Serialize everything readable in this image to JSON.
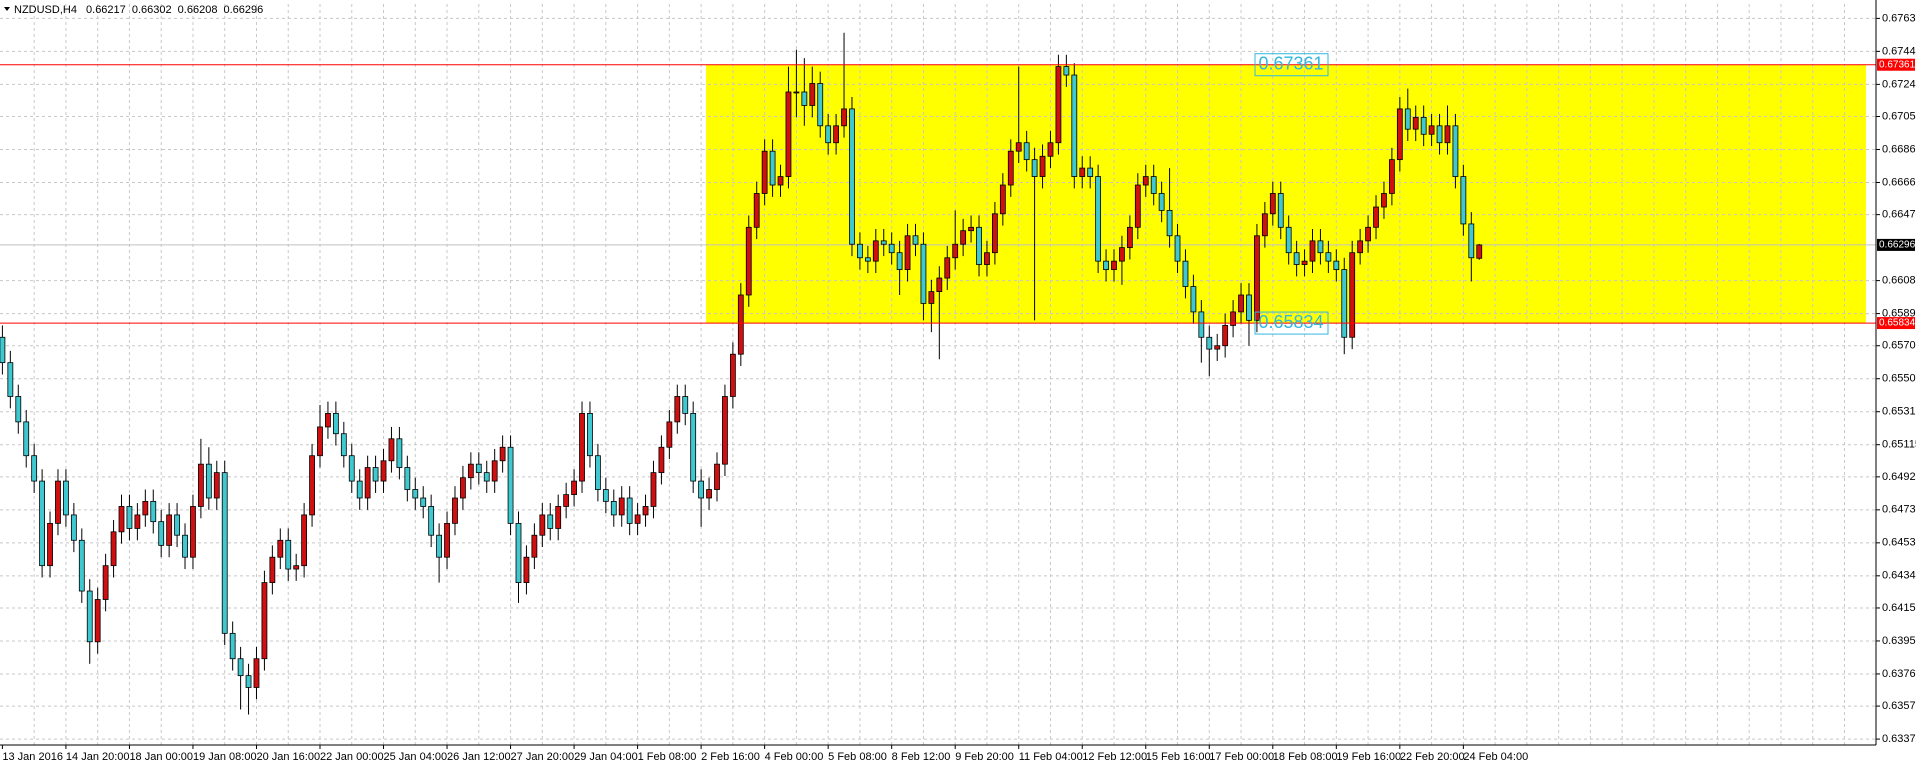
{
  "chart_data": {
    "type": "candlestick",
    "symbol": "NZDUSD,H4",
    "categories": [
      "13 Jan 2016",
      null,
      null,
      null,
      null,
      null,
      null,
      null,
      "14 Jan 20:00",
      null,
      null,
      null,
      null,
      null,
      null,
      null,
      "18 Jan 00:00",
      null,
      null,
      null,
      null,
      null,
      null,
      null,
      "19 Jan 08:00",
      null,
      null,
      null,
      null,
      null,
      null,
      null,
      "20 Jan 16:00",
      null,
      null,
      null,
      null,
      null,
      null,
      null,
      "22 Jan 00:00",
      null,
      null,
      null,
      null,
      null,
      null,
      null,
      "25 Jan 04:00",
      null,
      null,
      null,
      null,
      null,
      null,
      null,
      "26 Jan 12:00",
      null,
      null,
      null,
      null,
      null,
      null,
      null,
      "27 Jan 20:00",
      null,
      null,
      null,
      null,
      null,
      null,
      null,
      "29 Jan 04:00",
      null,
      null,
      null,
      null,
      null,
      null,
      null,
      "1 Feb 08:00",
      null,
      null,
      null,
      null,
      null,
      null,
      null,
      "2 Feb 16:00",
      null,
      null,
      null,
      null,
      null,
      null,
      null,
      "4 Feb 00:00",
      null,
      null,
      null,
      null,
      null,
      null,
      null,
      "5 Feb 08:00",
      null,
      null,
      null,
      null,
      null,
      null,
      null,
      "8 Feb 12:00",
      null,
      null,
      null,
      null,
      null,
      null,
      null,
      "9 Feb 20:00",
      null,
      null,
      null,
      null,
      null,
      null,
      null,
      "11 Feb 04:00",
      null,
      null,
      null,
      null,
      null,
      null,
      null,
      "12 Feb 12:00",
      null,
      null,
      null,
      null,
      null,
      null,
      null,
      "15 Feb 16:00",
      null,
      null,
      null,
      null,
      null,
      null,
      null,
      "17 Feb 00:00",
      null,
      null,
      null,
      null,
      null,
      null,
      null,
      "18 Feb 08:00",
      null,
      null,
      null,
      null,
      null,
      null,
      null,
      "19 Feb 16:00",
      null,
      null,
      null,
      null,
      null,
      null,
      null,
      "22 Feb 20:00",
      null,
      null,
      null,
      null,
      null,
      null,
      null,
      "24 Feb 04:00",
      null,
      null
    ],
    "open": [
      0.6575,
      0.656,
      0.654,
      0.6525,
      0.6505,
      0.649,
      0.644,
      0.6465,
      0.649,
      0.647,
      0.6455,
      0.6425,
      0.6395,
      0.642,
      0.644,
      0.646,
      0.6475,
      0.6462,
      0.647,
      0.6478,
      0.6466,
      0.6452,
      0.647,
      0.6458,
      0.6445,
      0.6475,
      0.65,
      0.648,
      0.6495,
      0.64,
      0.6385,
      0.6375,
      0.6368,
      0.6385,
      0.643,
      0.6445,
      0.6455,
      0.6438,
      0.644,
      0.647,
      0.6505,
      0.6522,
      0.653,
      0.6518,
      0.6505,
      0.649,
      0.648,
      0.6498,
      0.649,
      0.6502,
      0.6515,
      0.6498,
      0.6485,
      0.648,
      0.6475,
      0.6458,
      0.6445,
      0.6465,
      0.648,
      0.6492,
      0.65,
      0.6495,
      0.649,
      0.6502,
      0.651,
      0.6465,
      0.643,
      0.6445,
      0.6458,
      0.647,
      0.6462,
      0.6475,
      0.6482,
      0.649,
      0.653,
      0.6505,
      0.6485,
      0.6478,
      0.647,
      0.648,
      0.6465,
      0.647,
      0.6475,
      0.6495,
      0.651,
      0.6525,
      0.654,
      0.653,
      0.649,
      0.648,
      0.6485,
      0.65,
      0.654,
      0.6565,
      0.66,
      0.664,
      0.666,
      0.6685,
      0.6665,
      0.667,
      0.672,
      0.672,
      0.6712,
      0.6725,
      0.67,
      0.669,
      0.67,
      0.671,
      0.663,
      0.6622,
      0.662,
      0.6632,
      0.663,
      0.6625,
      0.6615,
      0.6635,
      0.663,
      0.6595,
      0.6602,
      0.661,
      0.6622,
      0.663,
      0.6638,
      0.664,
      0.6618,
      0.6625,
      0.6648,
      0.6665,
      0.6685,
      0.669,
      0.668,
      0.667,
      0.6682,
      0.669,
      0.6735,
      0.673,
      0.667,
      0.6675,
      0.667,
      0.662,
      0.6615,
      0.662,
      0.6628,
      0.664,
      0.6665,
      0.667,
      0.666,
      0.665,
      0.6635,
      0.662,
      0.6605,
      0.659,
      0.6575,
      0.6568,
      0.657,
      0.6582,
      0.659,
      0.66,
      0.6585,
      0.6635,
      0.6648,
      0.666,
      0.664,
      0.6625,
      0.6618,
      0.662,
      0.6632,
      0.6625,
      0.662,
      0.6615,
      0.6575,
      0.6625,
      0.6632,
      0.664,
      0.6652,
      0.666,
      0.668,
      0.671,
      0.6698,
      0.6705,
      0.6695,
      0.67,
      0.669,
      0.67,
      0.667,
      0.6642,
      0.66217
    ],
    "high": [
      0.6582,
      0.6567,
      0.6547,
      0.6532,
      0.6512,
      0.6497,
      0.6472,
      0.6497,
      0.6497,
      0.6477,
      0.6462,
      0.6432,
      0.6427,
      0.6447,
      0.6467,
      0.6482,
      0.6482,
      0.6477,
      0.6485,
      0.6485,
      0.6473,
      0.6477,
      0.6477,
      0.6465,
      0.6482,
      0.6515,
      0.651,
      0.6502,
      0.6502,
      0.6407,
      0.6392,
      0.6382,
      0.6392,
      0.6437,
      0.6452,
      0.6462,
      0.6462,
      0.6447,
      0.6477,
      0.6512,
      0.6535,
      0.6537,
      0.6537,
      0.6525,
      0.6512,
      0.6497,
      0.6505,
      0.6505,
      0.6509,
      0.6522,
      0.6522,
      0.6505,
      0.6492,
      0.6487,
      0.6482,
      0.6465,
      0.6472,
      0.6487,
      0.6499,
      0.6507,
      0.6507,
      0.6502,
      0.6509,
      0.6517,
      0.6517,
      0.6472,
      0.6452,
      0.6465,
      0.6477,
      0.6477,
      0.6482,
      0.6489,
      0.6497,
      0.6537,
      0.6537,
      0.6512,
      0.6492,
      0.6485,
      0.6487,
      0.6487,
      0.6477,
      0.6482,
      0.6502,
      0.6517,
      0.6532,
      0.6547,
      0.6547,
      0.6537,
      0.6497,
      0.6492,
      0.6507,
      0.6547,
      0.6572,
      0.6607,
      0.6647,
      0.6667,
      0.6692,
      0.6692,
      0.6677,
      0.6735,
      0.6745,
      0.674,
      0.6735,
      0.6732,
      0.6707,
      0.6707,
      0.6755,
      0.6717,
      0.6637,
      0.6629,
      0.6639,
      0.6639,
      0.6637,
      0.6632,
      0.6642,
      0.6642,
      0.6637,
      0.6609,
      0.6617,
      0.6629,
      0.665,
      0.6645,
      0.6647,
      0.6647,
      0.6632,
      0.6655,
      0.6672,
      0.6692,
      0.6735,
      0.6697,
      0.6687,
      0.6689,
      0.6697,
      0.6742,
      0.6742,
      0.6737,
      0.6682,
      0.6682,
      0.6677,
      0.6627,
      0.6627,
      0.6635,
      0.6647,
      0.6672,
      0.6677,
      0.6677,
      0.6667,
      0.6675,
      0.6642,
      0.6627,
      0.6612,
      0.6597,
      0.6582,
      0.6577,
      0.6589,
      0.6597,
      0.6607,
      0.6607,
      0.6642,
      0.6655,
      0.6667,
      0.6667,
      0.6647,
      0.6632,
      0.6627,
      0.6639,
      0.6639,
      0.6632,
      0.6627,
      0.6622,
      0.6632,
      0.6639,
      0.6647,
      0.6659,
      0.6667,
      0.6687,
      0.6717,
      0.6722,
      0.6712,
      0.6712,
      0.6707,
      0.6707,
      0.6712,
      0.6707,
      0.6677,
      0.6649,
      0.66302
    ],
    "low": [
      0.6553,
      0.6533,
      0.6518,
      0.6498,
      0.6483,
      0.6433,
      0.6433,
      0.6458,
      0.6463,
      0.6448,
      0.6418,
      0.6382,
      0.6388,
      0.6413,
      0.6433,
      0.6453,
      0.6455,
      0.6455,
      0.6463,
      0.6459,
      0.6445,
      0.6445,
      0.6451,
      0.6438,
      0.6438,
      0.6468,
      0.6473,
      0.6473,
      0.6393,
      0.6378,
      0.6355,
      0.6352,
      0.6361,
      0.6378,
      0.6423,
      0.6438,
      0.6431,
      0.6431,
      0.6433,
      0.6463,
      0.6498,
      0.6515,
      0.6511,
      0.6498,
      0.6483,
      0.6473,
      0.6473,
      0.6483,
      0.6483,
      0.6495,
      0.6491,
      0.6478,
      0.6473,
      0.6468,
      0.6451,
      0.643,
      0.6438,
      0.6458,
      0.6473,
      0.6485,
      0.6488,
      0.6483,
      0.6483,
      0.6495,
      0.6458,
      0.6418,
      0.6423,
      0.6438,
      0.6451,
      0.6455,
      0.6455,
      0.6468,
      0.6475,
      0.6483,
      0.6498,
      0.6478,
      0.6471,
      0.6463,
      0.6463,
      0.6458,
      0.6458,
      0.6463,
      0.6468,
      0.6488,
      0.6503,
      0.6518,
      0.6523,
      0.6483,
      0.6463,
      0.6473,
      0.6478,
      0.6493,
      0.6533,
      0.6558,
      0.6593,
      0.6633,
      0.6653,
      0.6658,
      0.6658,
      0.6663,
      0.6705,
      0.67,
      0.6705,
      0.6693,
      0.6683,
      0.6683,
      0.6693,
      0.6623,
      0.6615,
      0.6613,
      0.6613,
      0.6623,
      0.6618,
      0.66,
      0.6608,
      0.6623,
      0.6585,
      0.6578,
      0.6562,
      0.6603,
      0.6615,
      0.6623,
      0.6631,
      0.6611,
      0.6611,
      0.6618,
      0.6641,
      0.6658,
      0.6678,
      0.6673,
      0.6585,
      0.6663,
      0.6675,
      0.6683,
      0.6723,
      0.6663,
      0.6663,
      0.6663,
      0.6613,
      0.6608,
      0.6608,
      0.6606,
      0.6621,
      0.6633,
      0.6658,
      0.6653,
      0.6643,
      0.6628,
      0.6613,
      0.6598,
      0.6583,
      0.656,
      0.6552,
      0.6561,
      0.6563,
      0.6575,
      0.6583,
      0.657,
      0.6578,
      0.6628,
      0.6641,
      0.6633,
      0.6618,
      0.6611,
      0.6611,
      0.6613,
      0.6618,
      0.6613,
      0.6608,
      0.6565,
      0.6568,
      0.6618,
      0.6625,
      0.6633,
      0.6645,
      0.6653,
      0.6673,
      0.6691,
      0.6691,
      0.6688,
      0.6688,
      0.6683,
      0.6683,
      0.6663,
      0.6635,
      0.6608,
      0.66208
    ],
    "close": [
      0.656,
      0.654,
      0.6525,
      0.6505,
      0.649,
      0.644,
      0.6465,
      0.649,
      0.647,
      0.6455,
      0.6425,
      0.6395,
      0.642,
      0.644,
      0.646,
      0.6475,
      0.6462,
      0.647,
      0.6478,
      0.6466,
      0.6452,
      0.647,
      0.6458,
      0.6445,
      0.6475,
      0.65,
      0.648,
      0.6495,
      0.64,
      0.6385,
      0.6375,
      0.6368,
      0.6385,
      0.643,
      0.6445,
      0.6455,
      0.6438,
      0.644,
      0.647,
      0.6505,
      0.6522,
      0.653,
      0.6518,
      0.6505,
      0.649,
      0.648,
      0.6498,
      0.649,
      0.6502,
      0.6515,
      0.6498,
      0.6485,
      0.648,
      0.6475,
      0.6458,
      0.6445,
      0.6465,
      0.648,
      0.6492,
      0.65,
      0.6495,
      0.649,
      0.6502,
      0.651,
      0.6465,
      0.643,
      0.6445,
      0.6458,
      0.647,
      0.6462,
      0.6475,
      0.6482,
      0.649,
      0.653,
      0.6505,
      0.6485,
      0.6478,
      0.647,
      0.648,
      0.6465,
      0.647,
      0.6475,
      0.6495,
      0.651,
      0.6525,
      0.654,
      0.653,
      0.649,
      0.648,
      0.6485,
      0.65,
      0.654,
      0.6565,
      0.66,
      0.664,
      0.666,
      0.6685,
      0.6665,
      0.667,
      0.672,
      0.672,
      0.6712,
      0.6725,
      0.67,
      0.669,
      0.67,
      0.671,
      0.663,
      0.6622,
      0.662,
      0.6632,
      0.663,
      0.6625,
      0.6615,
      0.6635,
      0.663,
      0.6595,
      0.6602,
      0.661,
      0.6622,
      0.663,
      0.6638,
      0.664,
      0.6618,
      0.6625,
      0.6648,
      0.6665,
      0.6685,
      0.669,
      0.668,
      0.667,
      0.6682,
      0.669,
      0.6735,
      0.673,
      0.667,
      0.6675,
      0.667,
      0.662,
      0.6615,
      0.662,
      0.6628,
      0.664,
      0.6665,
      0.667,
      0.666,
      0.665,
      0.6635,
      0.662,
      0.6605,
      0.659,
      0.6575,
      0.6568,
      0.657,
      0.6582,
      0.659,
      0.66,
      0.6585,
      0.6635,
      0.6648,
      0.666,
      0.664,
      0.6625,
      0.6618,
      0.662,
      0.6632,
      0.6625,
      0.662,
      0.6615,
      0.6575,
      0.6625,
      0.6632,
      0.664,
      0.6652,
      0.666,
      0.668,
      0.671,
      0.6698,
      0.6705,
      0.6695,
      0.67,
      0.669,
      0.67,
      0.667,
      0.6642,
      0.6622,
      0.66296
    ],
    "levels": [
      0.67361,
      0.65834
    ],
    "ylim": [
      0.6334,
      0.6772
    ],
    "yticks": [
      0.67635,
      {
        "value": 0.6744,
        "label": "0.67440"
      },
      0.67245,
      0.67055,
      {
        "value": 0.6686,
        "label": "0.66860"
      },
      0.66665,
      0.66475,
      0.66085,
      {
        "value": 0.6589,
        "label": "0.65890"
      },
      {
        "value": 0.657,
        "label": "0.65700"
      },
      0.65505,
      {
        "value": 0.6531,
        "label": "0.65310"
      },
      0.65115,
      0.64925,
      {
        "value": 0.6473,
        "label": "0.64730"
      },
      0.64535,
      {
        "value": 0.6434,
        "label": "0.64340"
      },
      {
        "value": 0.6415,
        "label": "0.64150"
      },
      0.63955,
      {
        "value": 0.6376,
        "label": "0.63760"
      },
      {
        "value": 0.6357,
        "label": "0.63570"
      },
      0.63375
    ],
    "grid": true,
    "colors": {
      "up": "#d01010",
      "down": "#40c8d0",
      "wick": "#000000",
      "level": "#ff0000",
      "zone": "#ffff00",
      "level_text": "#30b8e0",
      "price_line": "#c0c0c0"
    }
  }
}
